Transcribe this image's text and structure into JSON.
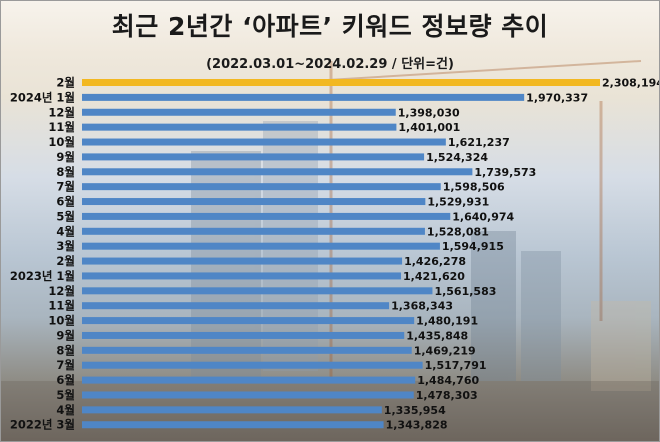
{
  "title": "최근 2년간 ‘아파트’ 키워드 정보량 추이",
  "subtitle": "(2022.03.01~2024.02.29 / 단위=건)",
  "colors": {
    "bar": "#4f86c6",
    "highlight": "#f2b821"
  },
  "chart_data": {
    "type": "bar",
    "orientation": "horizontal",
    "title": "최근 2년간 ‘아파트’ 키워드 정보량 추이",
    "subtitle": "(2022.03.01~2024.02.29 / 단위=건)",
    "categories": [
      "2월",
      "2024년 1월",
      "12월",
      "11월",
      "10월",
      "9월",
      "8월",
      "7월",
      "6월",
      "5월",
      "4월",
      "3월",
      "2월",
      "2023년 1월",
      "12월",
      "11월",
      "10월",
      "9월",
      "8월",
      "7월",
      "6월",
      "5월",
      "4월",
      "2022년 3월"
    ],
    "values": [
      2308194,
      1970337,
      1398030,
      1401001,
      1621237,
      1524324,
      1739573,
      1598506,
      1529931,
      1640974,
      1528081,
      1594915,
      1426278,
      1421620,
      1561583,
      1368343,
      1480191,
      1435848,
      1469219,
      1517791,
      1484760,
      1478303,
      1335954,
      1343828
    ],
    "labels": [
      "2,308,194",
      "1,970,337",
      "1,398,030",
      "1,401,001",
      "1,621,237",
      "1,524,324",
      "1,739,573",
      "1,598,506",
      "1,529,931",
      "1,640,974",
      "1,528,081",
      "1,594,915",
      "1,426,278",
      "1,421,620",
      "1,561,583",
      "1,368,343",
      "1,480,191",
      "1,435,848",
      "1,469,219",
      "1,517,791",
      "1,484,760",
      "1,478,303",
      "1,335,954",
      "1,343,828"
    ],
    "highlight_index": 0,
    "xlim": [
      0,
      2308194
    ],
    "grid": false,
    "legend": "none"
  }
}
